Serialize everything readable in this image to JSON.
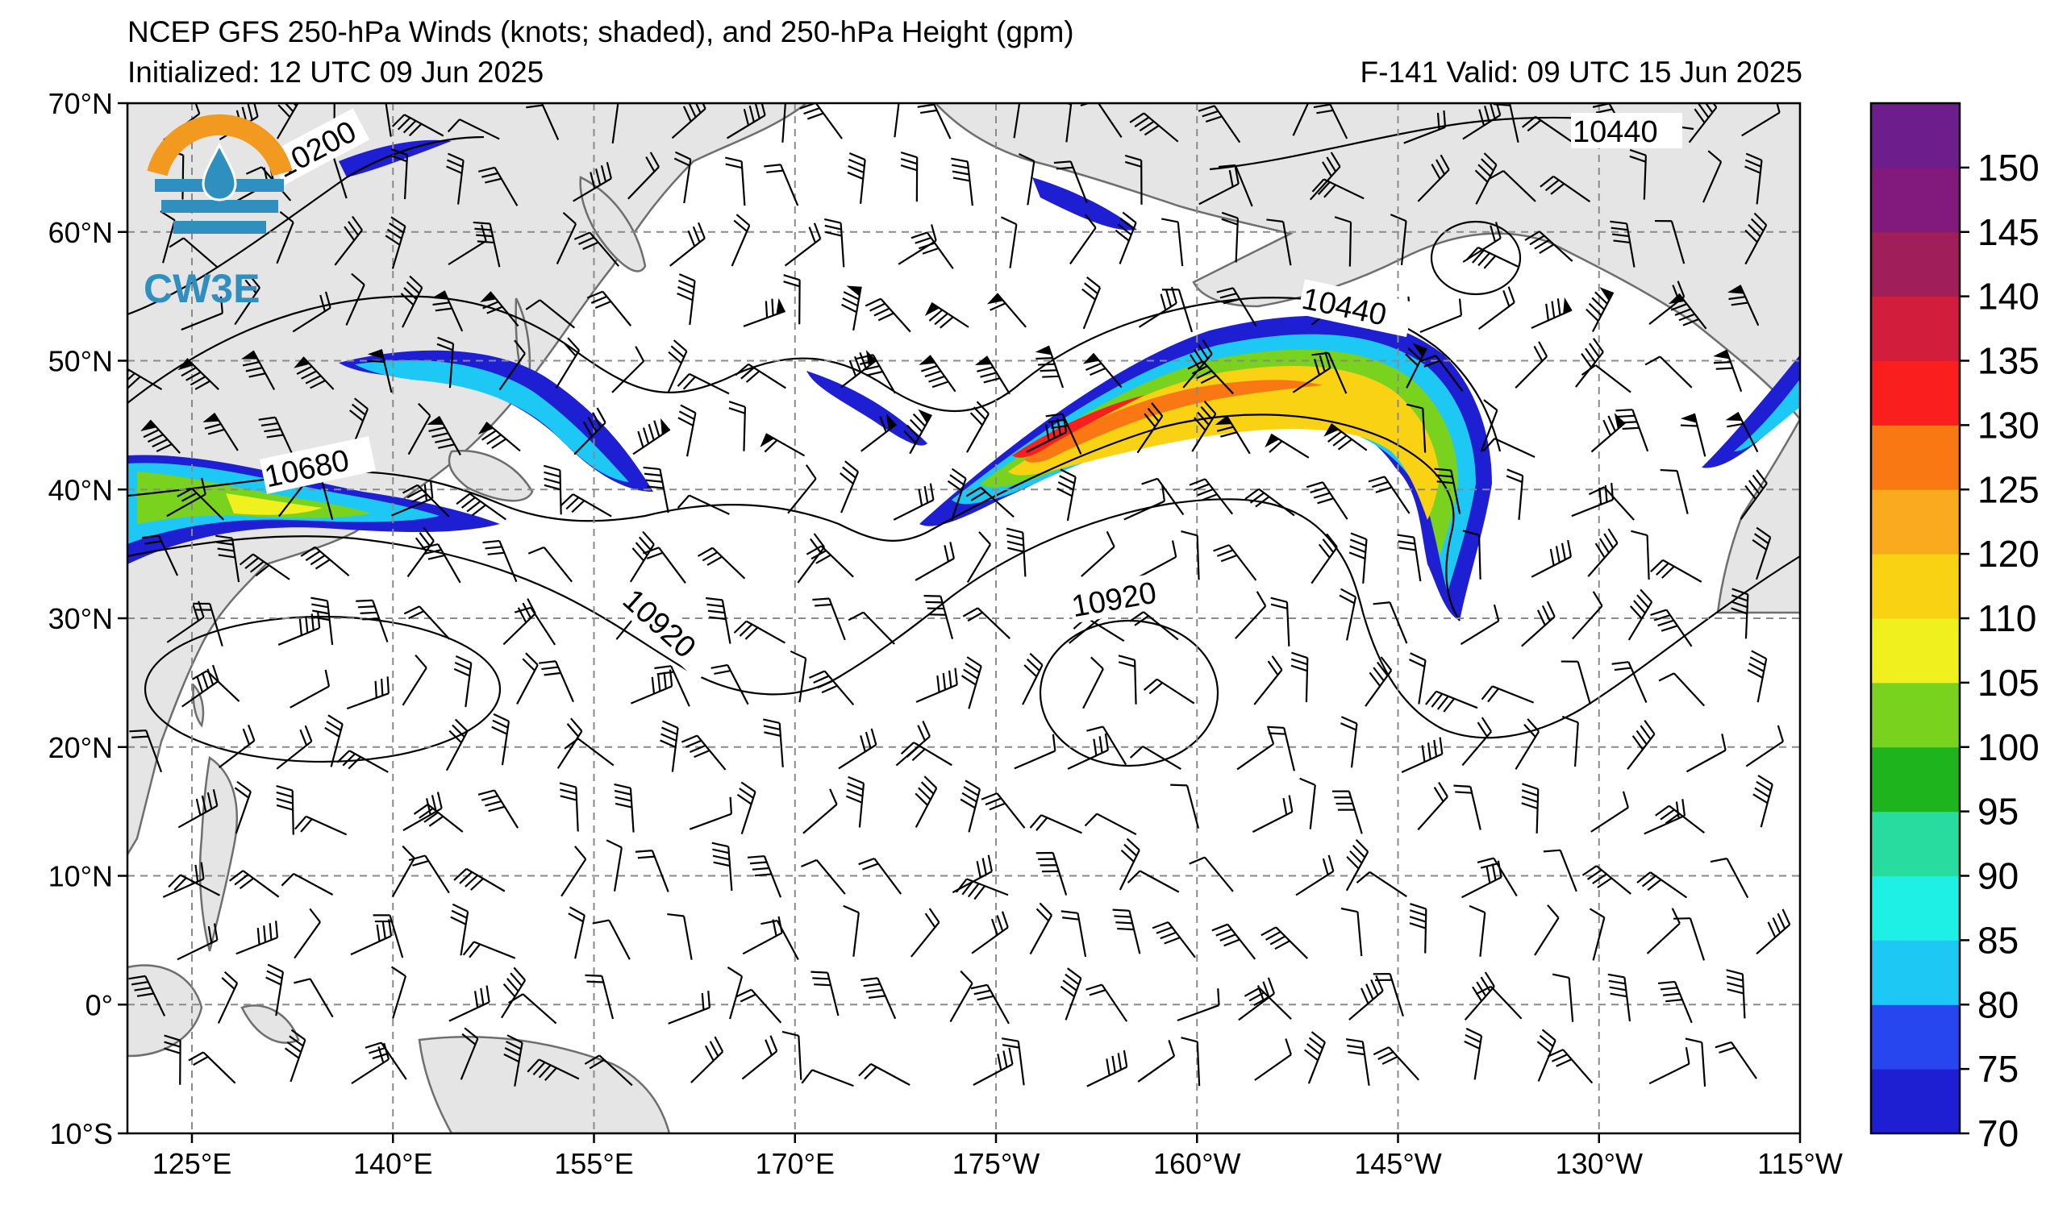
{
  "title": {
    "line1": "NCEP GFS 250-hPa Winds (knots; shaded), and 250-hPa Height (gpm)",
    "line2": "Initialized: 12 UTC 09 Jun 2025",
    "valid": "F-141  Valid: 09 UTC 15 Jun 2025"
  },
  "logo": {
    "text": "CW3E",
    "icon": "cw3e-droplet-logo-icon"
  },
  "map": {
    "lat_labels": [
      "70°N",
      "60°N",
      "50°N",
      "40°N",
      "30°N",
      "20°N",
      "10°N",
      "0°",
      "10°S"
    ],
    "lon_labels": [
      "125°E",
      "140°E",
      "155°E",
      "170°E",
      "175°W",
      "160°W",
      "145°W",
      "130°W",
      "115°W"
    ],
    "contour_labels": [
      "10200",
      "10440",
      "10440",
      "10680",
      "10920",
      "10920"
    ],
    "land_color": "#e5e5e5",
    "coast_color": "#6e6e6e"
  },
  "colorbar": {
    "ticks": [
      "70",
      "75",
      "80",
      "85",
      "90",
      "95",
      "100",
      "105",
      "110",
      "120",
      "125",
      "130",
      "135",
      "140",
      "145",
      "150"
    ],
    "colors": [
      "#1e1ed2",
      "#2846f0",
      "#1ec8f5",
      "#1ef0e6",
      "#28dca0",
      "#1eb41e",
      "#78d21e",
      "#f0f01e",
      "#fad214",
      "#faaa1e",
      "#fa7814",
      "#fa1e1e",
      "#d21e3c",
      "#a01e5a",
      "#82197d",
      "#6e1e8c"
    ]
  }
}
